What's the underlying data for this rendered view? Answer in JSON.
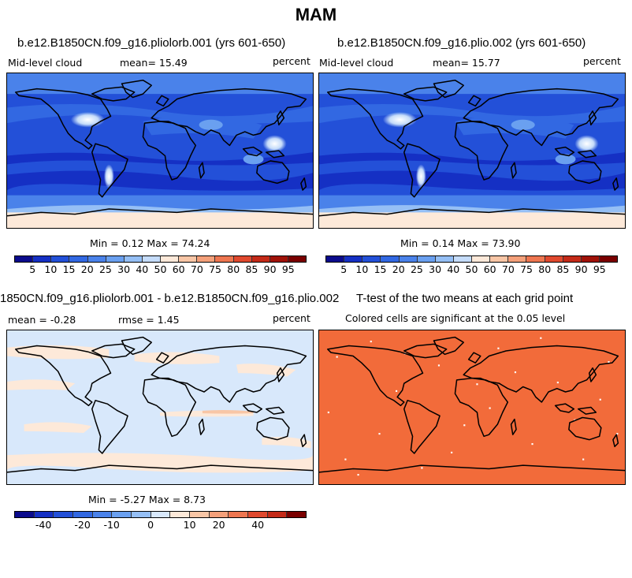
{
  "figure_title": "MAM",
  "panels": {
    "top_left": {
      "title": "b.e12.B1850CN.f09_g16.pliolorb.001 (yrs 601-650)",
      "variable": "Mid-level cloud",
      "mean_label": "mean=  15.49",
      "units": "percent",
      "minmax": "Min =   0.12 Max =  74.24"
    },
    "top_right": {
      "title": "b.e12.B1850CN.f09_g16.plio.002 (yrs 601-650)",
      "variable": "Mid-level cloud",
      "mean_label": "mean=  15.77",
      "units": "percent",
      "minmax": "Min =   0.14 Max =  73.90"
    },
    "bottom_left": {
      "title": "1850CN.f09_g16.pliolorb.001 - b.e12.B1850CN.f09_g16.plio.002",
      "mean_label": "mean =  -0.28",
      "rmse_label": "rmse =   1.45",
      "units": "percent",
      "minmax": "Min =  -5.27 Max =   8.73"
    },
    "bottom_right": {
      "title": "T-test of the two means at each grid point",
      "subtitle": "Colored cells are significant at the 0.05 level"
    }
  },
  "colorbars": {
    "cloud": {
      "labels": [
        "5",
        "10",
        "15",
        "20",
        "25",
        "30",
        "40",
        "50",
        "60",
        "70",
        "75",
        "80",
        "85",
        "90",
        "95"
      ],
      "colors": [
        "#0b0b8c",
        "#1530c4",
        "#2350d8",
        "#3268e2",
        "#4a82ea",
        "#6aa0f0",
        "#95bff5",
        "#c5dcfa",
        "#fde9d9",
        "#f8c6a6",
        "#f4a07a",
        "#ee7650",
        "#e0492e",
        "#c42a18",
        "#a01208",
        "#7a0000"
      ]
    },
    "diff": {
      "labels": [
        "-40",
        "-20",
        "-10",
        "0",
        "10",
        "20",
        "40"
      ],
      "label_positions": [
        1.5,
        3.5,
        5,
        7,
        9,
        10.5,
        12.5
      ],
      "colors": [
        "#0b0b8c",
        "#1530c4",
        "#2350d8",
        "#3268e2",
        "#4a82ea",
        "#6aa0f0",
        "#95bff5",
        "#d8e8fb",
        "#fde9d9",
        "#f8c6a6",
        "#f4a07a",
        "#ee7650",
        "#e0492e",
        "#c42a18",
        "#7a0000"
      ]
    }
  },
  "map_colors": {
    "cloud_base": "#2350d8",
    "diff_base": "#d8e8fb",
    "diff_positive": "#fde9d9",
    "ttest_fill": "#f26b3a"
  }
}
